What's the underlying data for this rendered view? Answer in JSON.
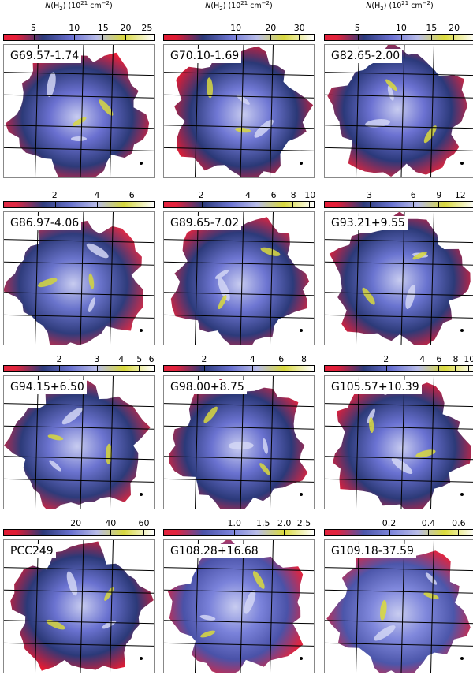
{
  "panels": [
    {
      "name": "G69.57-1.74",
      "title": "N(H2) (10^21 cm^-2)",
      "ticks": [
        "5",
        "10",
        "15",
        "20",
        "25"
      ],
      "tick_pos": [
        0.2,
        0.47,
        0.66,
        0.81,
        0.95
      ],
      "colors": {
        "hot": "#e8203a",
        "mid": "#6a70d0",
        "cool": "#2c3a78",
        "peak": "#d8d840"
      }
    },
    {
      "name": "G70.10-1.69",
      "title": "N(H2) (10^21 cm^-2)",
      "ticks": [
        "10",
        "20",
        "30"
      ],
      "tick_pos": [
        0.48,
        0.71,
        0.9
      ],
      "colors": {
        "hot": "#e01c34",
        "mid": "#7078d4",
        "cool": "#2a3876",
        "peak": "#d8d840"
      }
    },
    {
      "name": "G82.65-2.00",
      "title": "N(H2) (10^21 cm^-2)",
      "ticks": [
        "5",
        "10",
        "15",
        "20"
      ],
      "tick_pos": [
        0.22,
        0.51,
        0.71,
        0.86
      ],
      "colors": {
        "hot": "#e3243c",
        "mid": "#6c72d2",
        "cool": "#2b397a",
        "peak": "#dcdc3c"
      }
    },
    {
      "name": "G86.97-4.06",
      "title": "",
      "ticks": [
        "2",
        "4",
        "6"
      ],
      "tick_pos": [
        0.34,
        0.62,
        0.85
      ],
      "colors": {
        "hot": "#df2a44",
        "mid": "#6a74cc",
        "cool": "#2f3c7c",
        "peak": "#d4d63c"
      }
    },
    {
      "name": "G89.65-7.02",
      "title": "",
      "ticks": [
        "2",
        "4",
        "6",
        "8",
        "10"
      ],
      "tick_pos": [
        0.25,
        0.56,
        0.73,
        0.86,
        0.97
      ],
      "colors": {
        "hot": "#e3233d",
        "mid": "#6e76d2",
        "cool": "#2c3a7a",
        "peak": "#dada3e"
      }
    },
    {
      "name": "G93.21+9.55",
      "title": "",
      "ticks": [
        "3",
        "6",
        "9",
        "12"
      ],
      "tick_pos": [
        0.3,
        0.59,
        0.76,
        0.9
      ],
      "colors": {
        "hot": "#e41e38",
        "mid": "#6a74d0",
        "cool": "#2c3a78",
        "peak": "#d8d83e"
      }
    },
    {
      "name": "G94.15+6.50",
      "title": "",
      "ticks": [
        "2",
        "3",
        "4",
        "5",
        "6"
      ],
      "tick_pos": [
        0.37,
        0.62,
        0.78,
        0.9,
        0.98
      ],
      "colors": {
        "hot": "#e2263e",
        "mid": "#6c74d0",
        "cool": "#2d3b7a",
        "peak": "#d8d83c"
      }
    },
    {
      "name": "G98.00+8.75",
      "title": "",
      "ticks": [
        "2",
        "4",
        "6",
        "8"
      ],
      "tick_pos": [
        0.27,
        0.59,
        0.78,
        0.93
      ],
      "colors": {
        "hot": "#e2243e",
        "mid": "#6a72d0",
        "cool": "#2b3979",
        "peak": "#d8d83e"
      }
    },
    {
      "name": "G105.57+10.39",
      "title": "",
      "ticks": [
        "2",
        "4",
        "6",
        "8",
        "10"
      ],
      "tick_pos": [
        0.41,
        0.65,
        0.76,
        0.87,
        0.96
      ],
      "colors": {
        "hot": "#e21f3a",
        "mid": "#6a72d2",
        "cool": "#2c3a78",
        "peak": "#dada3e"
      }
    },
    {
      "name": "PCC249",
      "title": "",
      "ticks": [
        "20",
        "40",
        "60"
      ],
      "tick_pos": [
        0.48,
        0.71,
        0.93
      ],
      "colors": {
        "hot": "#e01c34",
        "mid": "#6a72d0",
        "cool": "#2b3978",
        "peak": "#d8d840"
      }
    },
    {
      "name": "G108.28+16.68",
      "title": "",
      "ticks": [
        "1.0",
        "1.5",
        "2.0",
        "2.5"
      ],
      "tick_pos": [
        0.47,
        0.66,
        0.8,
        0.93
      ],
      "colors": {
        "hot": "#e2243e",
        "mid": "#7a82da",
        "cool": "#4a52a8",
        "peak": "#dada3c"
      }
    },
    {
      "name": "G109.18-37.59",
      "title": "",
      "ticks": [
        "0.2",
        "0.4",
        "0.6"
      ],
      "tick_pos": [
        0.43,
        0.69,
        0.89
      ],
      "colors": {
        "hot": "#e2243e",
        "mid": "#8088dc",
        "cool": "#4c56aa",
        "peak": "#dcdc3a"
      }
    }
  ]
}
